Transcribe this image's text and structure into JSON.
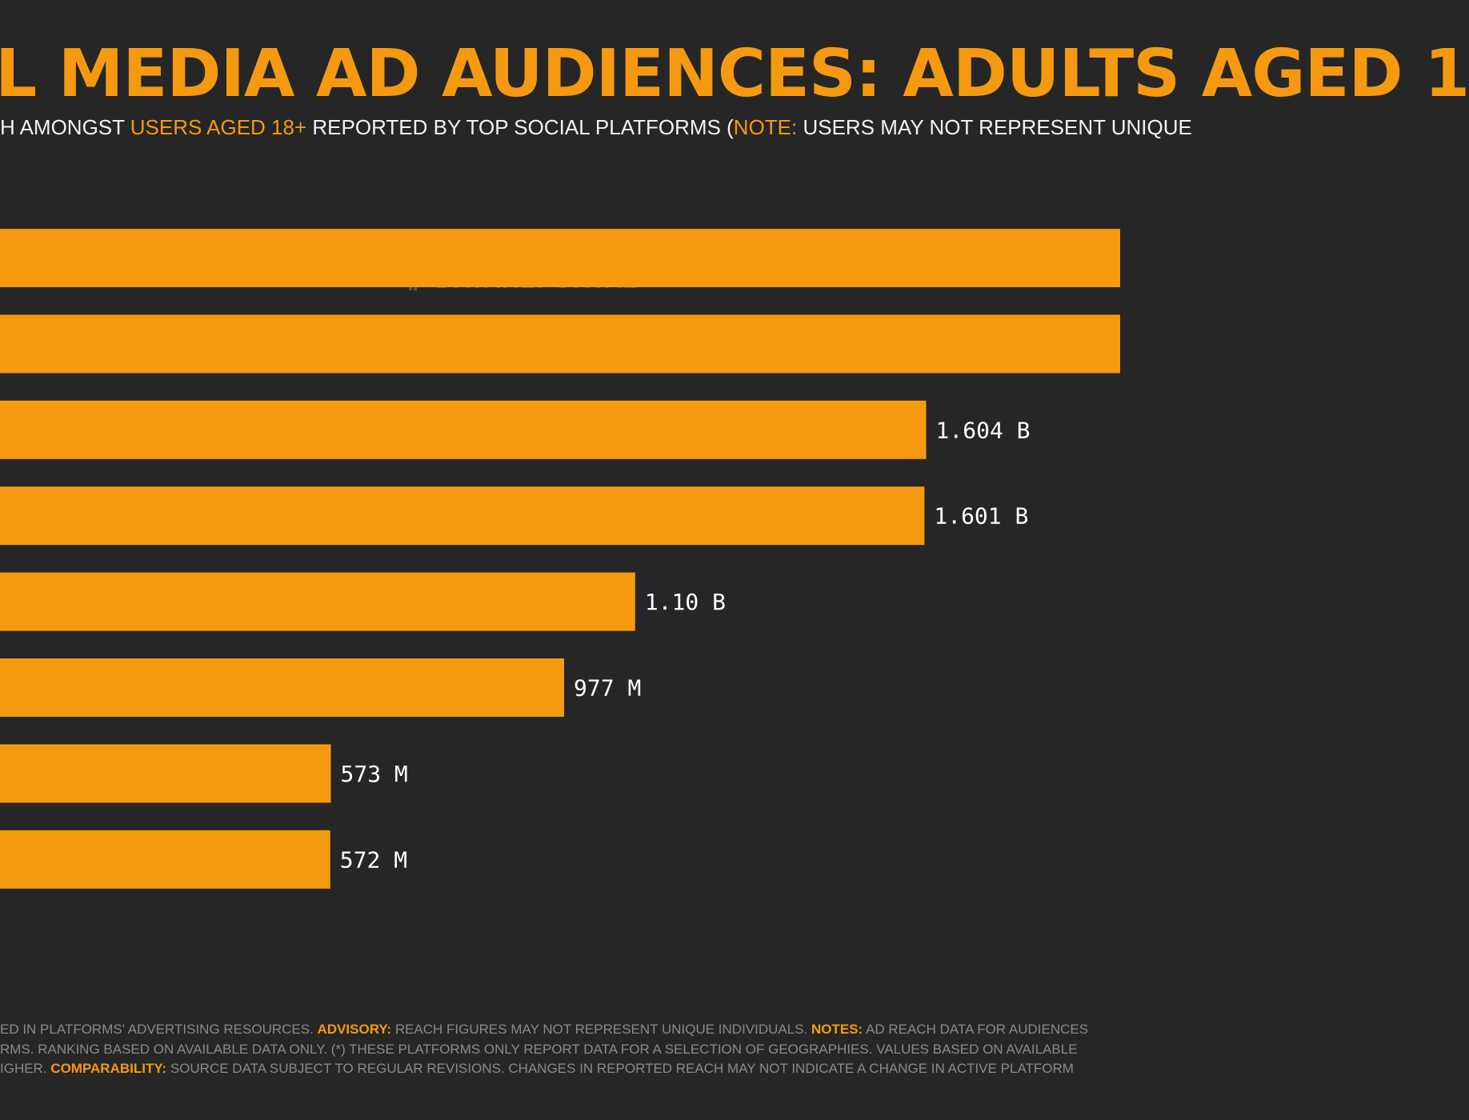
{
  "header": {
    "title": "L MEDIA AD AUDIENCES: ADULTS AGED 1",
    "subtitle": [
      {
        "text": "H AMONGST ",
        "highlight": false
      },
      {
        "text": "USERS AGED 18+",
        "highlight": true
      },
      {
        "text": " REPORTED BY TOP SOCIAL PLATFORMS (",
        "highlight": false
      },
      {
        "text": "NOTE:",
        "highlight": true
      },
      {
        "text": " USERS MAY NOT REPRESENT UNIQUE",
        "highlight": false
      }
    ]
  },
  "watermark": {
    "text": "DATAREPORTAL",
    "icon": "datareportal-logo-icon"
  },
  "chart_data": {
    "type": "bar",
    "orientation": "horizontal",
    "bar_color": "#f59a10",
    "label_color": "#ffffff",
    "axis_min": 0,
    "axis_max_millions": 1940,
    "bars": [
      {
        "value_millions": null,
        "label": ""
      },
      {
        "value_millions": null,
        "label": ""
      },
      {
        "value_millions": 1604,
        "label": "1.604 B"
      },
      {
        "value_millions": 1601,
        "label": "1.601 B"
      },
      {
        "value_millions": 1100,
        "label": "1.10 B"
      },
      {
        "value_millions": 977,
        "label": "977 M"
      },
      {
        "value_millions": 573,
        "label": "573 M"
      },
      {
        "value_millions": 572,
        "label": "572 M"
      }
    ]
  },
  "footer": {
    "lines": [
      [
        {
          "text": "ED IN PLATFORMS' ADVERTISING RESOURCES. ",
          "highlight": false
        },
        {
          "text": "ADVISORY:",
          "highlight": true
        },
        {
          "text": " REACH FIGURES MAY NOT REPRESENT UNIQUE INDIVIDUALS. ",
          "highlight": false
        },
        {
          "text": "NOTES:",
          "highlight": true
        },
        {
          "text": " AD REACH DATA FOR AUDIENCES",
          "highlight": false
        }
      ],
      [
        {
          "text": "RMS. RANKING BASED ON AVAILABLE DATA ONLY. (*) THESE PLATFORMS ONLY REPORT DATA FOR A SELECTION OF GEOGRAPHIES. VALUES BASED ON AVAILABLE",
          "highlight": false
        }
      ],
      [
        {
          "text": "IGHER. ",
          "highlight": false
        },
        {
          "text": "COMPARABILITY:",
          "highlight": true
        },
        {
          "text": " SOURCE DATA SUBJECT TO REGULAR REVISIONS. CHANGES IN REPORTED REACH MAY NOT INDICATE A CHANGE IN ACTIVE PLATFORM",
          "highlight": false
        }
      ]
    ]
  }
}
